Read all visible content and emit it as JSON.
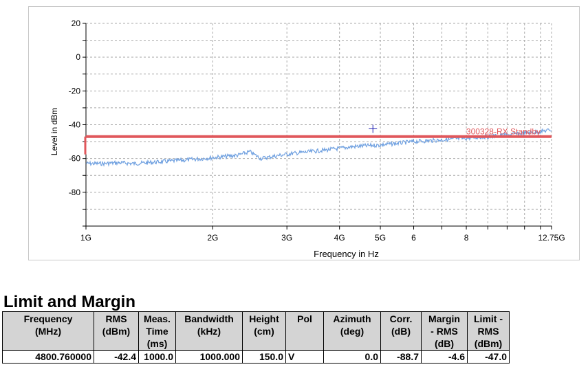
{
  "chart_data": {
    "type": "line",
    "xlabel": "Frequency in Hz",
    "ylabel": "Level in dBm",
    "x_scale": "log",
    "xlim": [
      1,
      12.75
    ],
    "ylim": [
      -100,
      20
    ],
    "x_ticks": [
      {
        "value": 1,
        "label": "1G"
      },
      {
        "value": 2,
        "label": "2G"
      },
      {
        "value": 3,
        "label": "3G"
      },
      {
        "value": 4,
        "label": "4G"
      },
      {
        "value": 5,
        "label": "5G"
      },
      {
        "value": 6,
        "label": "6"
      },
      {
        "value": 8,
        "label": "8"
      },
      {
        "value": 12.75,
        "label": "12.75G"
      }
    ],
    "y_ticks": [
      20,
      0,
      -20,
      -40,
      -60,
      -80
    ],
    "grid": true,
    "series": [
      {
        "color": "#6fa0e0",
        "x": [
          1.0,
          1.1,
          1.2,
          1.3,
          1.4,
          1.5,
          1.7,
          1.9,
          2.1,
          2.3,
          2.45,
          2.6,
          2.75,
          2.9,
          3.1,
          3.4,
          3.7,
          4.0,
          4.3,
          4.6,
          5.0,
          5.5,
          6.0,
          6.5,
          7.0,
          7.5,
          8.0,
          8.5,
          9.0,
          9.5,
          10.0,
          11.0,
          12.0,
          12.75
        ],
        "values": [
          -63,
          -63,
          -62.5,
          -63,
          -62.5,
          -62,
          -61,
          -60,
          -59,
          -58,
          -56,
          -60,
          -59,
          -58,
          -57,
          -56,
          -55,
          -54,
          -53,
          -52.5,
          -52,
          -51,
          -50,
          -49.5,
          -49,
          -48.5,
          -48,
          -47.5,
          -47,
          -46.5,
          -46,
          -45,
          -44,
          -43
        ]
      }
    ],
    "limit_line": {
      "label": "300328-RX Standby",
      "color": "#e0575b",
      "value": -47,
      "x": [
        1,
        12.75
      ]
    },
    "marker": {
      "x": 4.80076,
      "y": -42.4,
      "color": "#1a1ab0"
    }
  },
  "section": {
    "title": "Limit and Margin"
  },
  "table": {
    "headers": [
      "Frequency\n(MHz)",
      "RMS\n(dBm)",
      "Meas.\nTime\n(ms)",
      "Bandwidth\n(kHz)",
      "Height\n(cm)",
      "Pol",
      "Azimuth\n(deg)",
      "Corr.\n(dB)",
      "Margin\n- RMS\n(dB)",
      "Limit -\nRMS\n(dBm)"
    ],
    "rows": [
      [
        "4800.760000",
        "-42.4",
        "1000.0",
        "1000.000",
        "150.0",
        "V",
        "0.0",
        "-88.7",
        "-4.6",
        "-47.0"
      ]
    ]
  }
}
